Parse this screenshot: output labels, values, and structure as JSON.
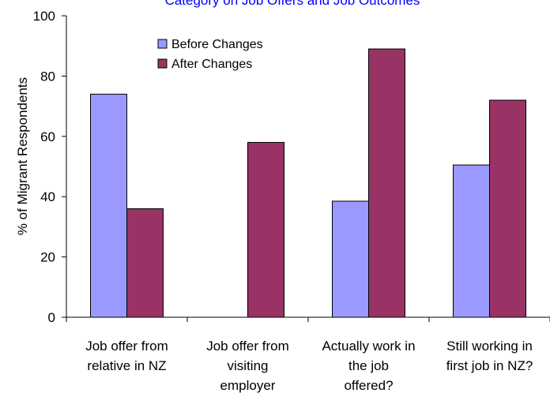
{
  "chart_data": {
    "type": "bar",
    "title": "Category on Job Offers and Job Outcomes",
    "ylabel": "% of Migrant Respondents",
    "xlabel": "",
    "ylim": [
      0,
      100
    ],
    "yticks": [
      0,
      20,
      40,
      60,
      80,
      100
    ],
    "grid": false,
    "legend_position": "top-center",
    "categories": [
      [
        "Job offer from",
        "relative in NZ"
      ],
      [
        "Job offer from",
        "visiting",
        "employer"
      ],
      [
        "Actually work in",
        "the job",
        "offered?"
      ],
      [
        "Still working in",
        "first job in NZ?"
      ]
    ],
    "series": [
      {
        "name": "Before Changes",
        "color": "#9999ff",
        "values": [
          74,
          null,
          38.5,
          50.5
        ]
      },
      {
        "name": "After Changes",
        "color": "#993366",
        "values": [
          36,
          58,
          89,
          72
        ]
      }
    ]
  }
}
